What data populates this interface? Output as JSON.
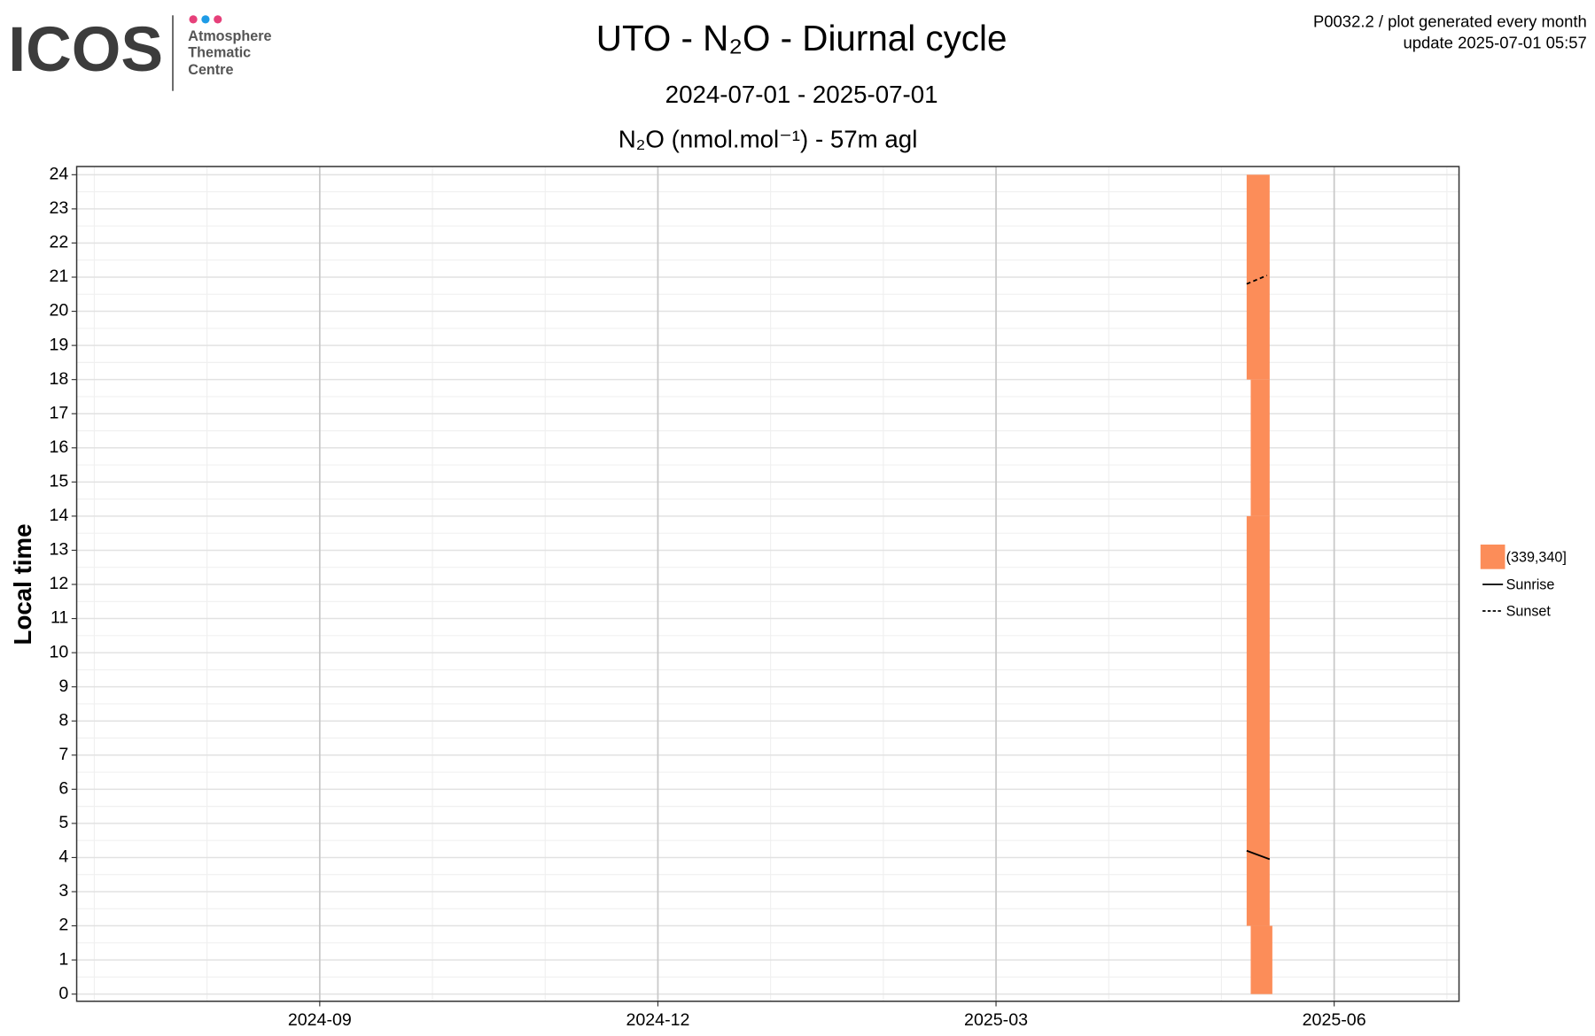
{
  "logo": {
    "name": "ICOS",
    "lines": [
      "Atmosphere",
      "Thematic",
      "Centre"
    ]
  },
  "chart_data": {
    "type": "tile",
    "title": "UTO - N₂O - Diurnal cycle",
    "subtitle": "2024-07-01 - 2025-07-01",
    "panel_title": "N₂O (nmol.mol⁻¹) - 57m agl",
    "notes": [
      "P0032.2 / plot generated every month",
      "update  2025-07-01 05:57"
    ],
    "ylabel": "Local time",
    "xlim": [
      2024.487,
      2025.509
    ],
    "xticks": [
      {
        "value": 2024.6667,
        "label": "2024-09"
      },
      {
        "value": 2024.9167,
        "label": "2024-12"
      },
      {
        "value": 2025.1667,
        "label": "2025-03"
      },
      {
        "value": 2025.4167,
        "label": "2025-06"
      }
    ],
    "ylim": [
      -0.21,
      24.24
    ],
    "yticks": [
      0,
      1,
      2,
      3,
      4,
      5,
      6,
      7,
      8,
      9,
      10,
      11,
      12,
      13,
      14,
      15,
      16,
      17,
      18,
      19,
      20,
      21,
      22,
      23,
      24
    ],
    "grid": true,
    "tiles": {
      "name": "(339,340]",
      "color": "#fc8d59",
      "x0": [
        2025.355,
        2025.352,
        2025.355,
        2025.352
      ],
      "x1": [
        2025.371,
        2025.369,
        2025.369,
        2025.369
      ],
      "y0": [
        0,
        2,
        14,
        18
      ],
      "y1": [
        2,
        14,
        18,
        24
      ]
    },
    "lines": [
      {
        "name": "Sunrise",
        "color": "#000000",
        "dashed": false,
        "x": [
          2025.352,
          2025.369
        ],
        "values": [
          4.2,
          3.95
        ]
      },
      {
        "name": "Sunset",
        "color": "#000000",
        "dashed": true,
        "x": [
          2025.352,
          2025.367
        ],
        "values": [
          20.8,
          21.05
        ]
      }
    ],
    "legend_position": "right"
  }
}
